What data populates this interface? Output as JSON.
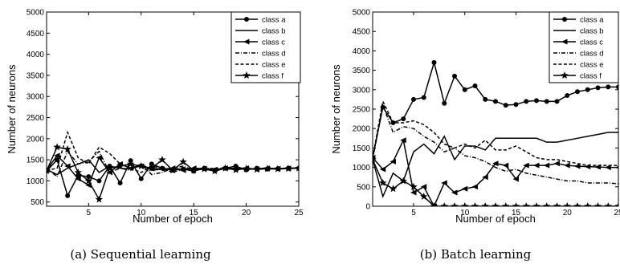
{
  "chart_data": [
    {
      "type": "line",
      "caption": "(a) Sequential learning",
      "xlabel": "Number of epoch",
      "ylabel": "Number of neurons",
      "xlim": [
        1,
        25
      ],
      "ylim": [
        400,
        5000
      ],
      "xticks": [
        5,
        10,
        15,
        20,
        25
      ],
      "yticks": [
        500,
        1000,
        1500,
        2000,
        2500,
        3000,
        3500,
        4000,
        4500,
        5000
      ],
      "legend_position": "top-right",
      "x": [
        1,
        2,
        3,
        4,
        5,
        6,
        7,
        8,
        9,
        10,
        11,
        12,
        13,
        14,
        15,
        16,
        17,
        18,
        19,
        20,
        21,
        22,
        23,
        24,
        25
      ],
      "series": [
        {
          "name": "class a",
          "style": "solid",
          "marker": "circle",
          "values": [
            1230,
            1500,
            650,
            1130,
            1100,
            1000,
            1350,
            950,
            1480,
            1050,
            1400,
            1300,
            1250,
            1280,
            1230,
            1300,
            1250,
            1300,
            1350,
            1260,
            1300,
            1280,
            1290,
            1300,
            1300
          ]
        },
        {
          "name": "class b",
          "style": "solid",
          "marker": "none",
          "values": [
            1270,
            1150,
            1300,
            1400,
            1500,
            1200,
            1350,
            1300,
            1280,
            1400,
            1250,
            1280,
            1300,
            1270,
            1300,
            1280,
            1270,
            1290,
            1300,
            1280,
            1290,
            1300,
            1290,
            1300,
            1300
          ]
        },
        {
          "name": "class c",
          "style": "solid",
          "marker": "triangle-left",
          "values": [
            1250,
            1600,
            1350,
            1050,
            900,
            1550,
            1200,
            1400,
            1300,
            1350,
            1300,
            1280,
            1300,
            1250,
            1300,
            1290,
            1270,
            1300,
            1290,
            1300,
            1280,
            1300,
            1290,
            1300,
            1300
          ]
        },
        {
          "name": "class d",
          "style": "dashdot",
          "marker": "none",
          "values": [
            1300,
            1100,
            1700,
            1400,
            1450,
            1700,
            1200,
            1300,
            1250,
            1400,
            1150,
            1200,
            1300,
            1350,
            1250,
            1300,
            1290,
            1270,
            1300,
            1280,
            1290,
            1300,
            1290,
            1300,
            1300
          ]
        },
        {
          "name": "class e",
          "style": "dashed",
          "marker": "none",
          "values": [
            1250,
            1300,
            2150,
            1550,
            1400,
            1800,
            1650,
            1400,
            1300,
            1200,
            1350,
            1300,
            1200,
            1280,
            1300,
            1270,
            1300,
            1290,
            1300,
            1280,
            1290,
            1300,
            1290,
            1300,
            1300
          ]
        },
        {
          "name": "class f",
          "style": "solid",
          "marker": "star",
          "values": [
            1240,
            1800,
            1750,
            1200,
            1000,
            560,
            1300,
            1350,
            1400,
            1350,
            1300,
            1500,
            1250,
            1450,
            1250,
            1280,
            1230,
            1300,
            1260,
            1290,
            1270,
            1290,
            1280,
            1290,
            1300
          ]
        }
      ]
    },
    {
      "type": "line",
      "caption": "(b) Batch learning",
      "xlabel": "Number of epoch",
      "ylabel": "Number of neurons",
      "xlim": [
        1,
        25
      ],
      "ylim": [
        0,
        5000
      ],
      "xticks": [
        5,
        10,
        15,
        20,
        25
      ],
      "yticks": [
        0,
        500,
        1000,
        1500,
        2000,
        2500,
        3000,
        3500,
        4000,
        4500,
        5000
      ],
      "legend_position": "top-right",
      "x": [
        1,
        2,
        3,
        4,
        5,
        6,
        7,
        8,
        9,
        10,
        11,
        12,
        13,
        14,
        15,
        16,
        17,
        18,
        19,
        20,
        21,
        22,
        23,
        24,
        25
      ],
      "series": [
        {
          "name": "class a",
          "style": "solid",
          "marker": "circle",
          "values": [
            1250,
            2550,
            2150,
            2250,
            2750,
            2800,
            3700,
            2650,
            3350,
            3000,
            3100,
            2750,
            2700,
            2600,
            2620,
            2700,
            2720,
            2700,
            2700,
            2850,
            2950,
            3000,
            3050,
            3070,
            3070
          ]
        },
        {
          "name": "class b",
          "style": "solid",
          "marker": "none",
          "values": [
            1200,
            250,
            850,
            650,
            1400,
            1600,
            1350,
            1800,
            1200,
            1550,
            1550,
            1450,
            1750,
            1750,
            1750,
            1750,
            1750,
            1650,
            1650,
            1700,
            1750,
            1800,
            1850,
            1900,
            1900
          ]
        },
        {
          "name": "class c",
          "style": "solid",
          "marker": "triangle-left",
          "values": [
            1250,
            950,
            1150,
            1700,
            350,
            500,
            0,
            600,
            350,
            450,
            500,
            750,
            1100,
            1050,
            700,
            1050,
            1050,
            1050,
            1100,
            1050,
            1030,
            1020,
            1010,
            1000,
            1000
          ]
        },
        {
          "name": "class d",
          "style": "dashdot",
          "marker": "none",
          "values": [
            1200,
            2600,
            1900,
            2050,
            2000,
            1800,
            1650,
            1400,
            1500,
            1300,
            1250,
            1150,
            1000,
            900,
            950,
            850,
            800,
            750,
            700,
            650,
            650,
            600,
            600,
            600,
            580
          ]
        },
        {
          "name": "class e",
          "style": "dashed",
          "marker": "none",
          "values": [
            1250,
            2700,
            2150,
            2150,
            2200,
            2100,
            1900,
            1600,
            1500,
            1600,
            1500,
            1700,
            1450,
            1450,
            1550,
            1400,
            1250,
            1200,
            1200,
            1150,
            1100,
            1050,
            1050,
            1050,
            1050
          ]
        },
        {
          "name": "class f",
          "style": "solid",
          "marker": "star",
          "values": [
            1200,
            600,
            450,
            650,
            500,
            250,
            0,
            0,
            0,
            0,
            0,
            0,
            0,
            0,
            0,
            0,
            0,
            0,
            0,
            0,
            0,
            0,
            0,
            0,
            0
          ]
        }
      ]
    }
  ]
}
